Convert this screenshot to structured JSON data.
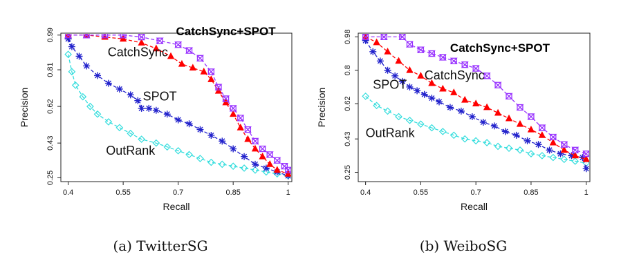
{
  "captions": [
    "(a) TwitterSG",
    "(b) WeiboSG"
  ],
  "chart_data": [
    {
      "type": "line",
      "xlabel": "Recall",
      "ylabel": "Precision",
      "xlim": [
        0.38,
        1.01
      ],
      "ylim": [
        0.23,
        1.0
      ],
      "xticks": [
        0.4,
        0.55,
        0.7,
        0.85,
        1
      ],
      "xtick_labels": [
        "0.4",
        "0.55",
        "0.7",
        "0.85",
        "1"
      ],
      "yticks": [
        0.25,
        0.43,
        0.62,
        0.81,
        0.99
      ],
      "ytick_labels": [
        "0.25",
        "0.43",
        "0.62",
        "0.81",
        "0.99"
      ],
      "annotations": [
        {
          "text": "CatchSync+SPOT",
          "x": 0.83,
          "y": 0.99,
          "bold": true
        },
        {
          "text": "CatchSync",
          "x": 0.59,
          "y": 0.88,
          "bold": false
        },
        {
          "text": "SPOT",
          "x": 0.65,
          "y": 0.65,
          "bold": false
        },
        {
          "text": "OutRank",
          "x": 0.57,
          "y": 0.37,
          "bold": false
        }
      ],
      "series": [
        {
          "color": "#9933ff",
          "marker": "hourglass",
          "x": [
            0.4,
            0.45,
            0.5,
            0.55,
            0.6,
            0.65,
            0.7,
            0.73,
            0.76,
            0.79,
            0.81,
            0.83,
            0.85,
            0.87,
            0.89,
            0.91,
            0.93,
            0.95,
            0.97,
            0.99,
            1.0
          ],
          "y": [
            0.99,
            0.99,
            0.99,
            0.99,
            0.98,
            0.96,
            0.94,
            0.91,
            0.87,
            0.8,
            0.72,
            0.66,
            0.61,
            0.56,
            0.5,
            0.44,
            0.4,
            0.37,
            0.34,
            0.31,
            0.29
          ]
        },
        {
          "color": "#ff0000",
          "marker": "triangle",
          "x": [
            0.4,
            0.45,
            0.5,
            0.55,
            0.6,
            0.64,
            0.68,
            0.71,
            0.74,
            0.77,
            0.79,
            0.81,
            0.83,
            0.85,
            0.87,
            0.89,
            0.91,
            0.93,
            0.95,
            0.97,
            1.0
          ],
          "y": [
            0.99,
            0.99,
            0.98,
            0.97,
            0.95,
            0.92,
            0.88,
            0.84,
            0.82,
            0.8,
            0.76,
            0.7,
            0.64,
            0.58,
            0.51,
            0.45,
            0.4,
            0.36,
            0.32,
            0.29,
            0.27
          ]
        },
        {
          "color": "#2222cc",
          "marker": "asterisk",
          "x": [
            0.4,
            0.41,
            0.43,
            0.45,
            0.48,
            0.51,
            0.54,
            0.57,
            0.59,
            0.6,
            0.62,
            0.64,
            0.67,
            0.7,
            0.73,
            0.76,
            0.79,
            0.82,
            0.85,
            0.88,
            0.91,
            0.94,
            0.97,
            1.0
          ],
          "y": [
            0.97,
            0.93,
            0.88,
            0.83,
            0.78,
            0.74,
            0.71,
            0.68,
            0.65,
            0.61,
            0.61,
            0.6,
            0.58,
            0.55,
            0.53,
            0.5,
            0.47,
            0.44,
            0.4,
            0.36,
            0.32,
            0.3,
            0.28,
            0.26
          ]
        },
        {
          "color": "#33dddd",
          "marker": "diamond",
          "x": [
            0.4,
            0.41,
            0.42,
            0.44,
            0.46,
            0.48,
            0.51,
            0.54,
            0.57,
            0.6,
            0.64,
            0.67,
            0.7,
            0.73,
            0.76,
            0.79,
            0.82,
            0.85,
            0.88,
            0.91,
            0.94,
            0.97,
            1.0
          ],
          "y": [
            0.89,
            0.8,
            0.73,
            0.67,
            0.62,
            0.58,
            0.54,
            0.51,
            0.48,
            0.45,
            0.43,
            0.41,
            0.39,
            0.37,
            0.35,
            0.33,
            0.32,
            0.31,
            0.3,
            0.29,
            0.28,
            0.27,
            0.26
          ]
        }
      ]
    },
    {
      "type": "line",
      "xlabel": "Recall",
      "ylabel": "Precision",
      "xlim": [
        0.38,
        1.01
      ],
      "ylim": [
        0.2,
        1.0
      ],
      "xticks": [
        0.4,
        0.55,
        0.7,
        0.85,
        1
      ],
      "xtick_labels": [
        "0.4",
        "0.55",
        "0.7",
        "0.85",
        "1"
      ],
      "yticks": [
        0.25,
        0.43,
        0.62,
        0.8,
        0.98
      ],
      "ytick_labels": [
        "0.25",
        "0.43",
        "0.62",
        "0.8",
        "0.98"
      ],
      "annotations": [
        {
          "text": "CatchSync+SPOT",
          "x": 0.63,
          "y": 0.9,
          "bold": true
        },
        {
          "text": "CatchSync",
          "x": 0.56,
          "y": 0.75,
          "bold": false
        },
        {
          "text": "SPOT",
          "x": 0.42,
          "y": 0.7,
          "bold": false
        },
        {
          "text": "OutRank",
          "x": 0.4,
          "y": 0.44,
          "bold": false
        }
      ],
      "series": [
        {
          "color": "#9933ff",
          "marker": "hourglass",
          "x": [
            0.4,
            0.45,
            0.5,
            0.52,
            0.55,
            0.58,
            0.61,
            0.64,
            0.67,
            0.7,
            0.73,
            0.76,
            0.79,
            0.82,
            0.85,
            0.88,
            0.91,
            0.94,
            0.97,
            1.0
          ],
          "y": [
            0.98,
            0.98,
            0.98,
            0.94,
            0.91,
            0.89,
            0.87,
            0.85,
            0.83,
            0.81,
            0.77,
            0.72,
            0.66,
            0.6,
            0.55,
            0.49,
            0.44,
            0.4,
            0.37,
            0.35
          ]
        },
        {
          "color": "#ff0000",
          "marker": "triangle",
          "x": [
            0.4,
            0.43,
            0.46,
            0.49,
            0.52,
            0.55,
            0.58,
            0.61,
            0.64,
            0.67,
            0.7,
            0.73,
            0.76,
            0.79,
            0.82,
            0.85,
            0.88,
            0.91,
            0.94,
            0.97,
            1.0
          ],
          "y": [
            0.98,
            0.95,
            0.9,
            0.85,
            0.8,
            0.77,
            0.73,
            0.7,
            0.68,
            0.64,
            0.62,
            0.6,
            0.57,
            0.54,
            0.51,
            0.48,
            0.45,
            0.41,
            0.37,
            0.34,
            0.32
          ]
        },
        {
          "color": "#2222cc",
          "marker": "asterisk",
          "x": [
            0.4,
            0.42,
            0.44,
            0.46,
            0.48,
            0.5,
            0.52,
            0.54,
            0.56,
            0.58,
            0.6,
            0.63,
            0.66,
            0.69,
            0.72,
            0.75,
            0.78,
            0.81,
            0.84,
            0.87,
            0.9,
            0.93,
            0.96,
            0.99,
            1.0
          ],
          "y": [
            0.96,
            0.9,
            0.85,
            0.8,
            0.77,
            0.74,
            0.71,
            0.69,
            0.67,
            0.65,
            0.63,
            0.6,
            0.58,
            0.55,
            0.52,
            0.5,
            0.47,
            0.45,
            0.42,
            0.4,
            0.37,
            0.35,
            0.34,
            0.33,
            0.27
          ]
        },
        {
          "color": "#33dddd",
          "marker": "diamond",
          "x": [
            0.4,
            0.43,
            0.46,
            0.49,
            0.52,
            0.55,
            0.58,
            0.61,
            0.64,
            0.67,
            0.7,
            0.73,
            0.76,
            0.79,
            0.82,
            0.85,
            0.88,
            0.91,
            0.94,
            0.97,
            1.0
          ],
          "y": [
            0.66,
            0.61,
            0.58,
            0.55,
            0.53,
            0.51,
            0.49,
            0.47,
            0.45,
            0.43,
            0.42,
            0.41,
            0.39,
            0.38,
            0.37,
            0.35,
            0.34,
            0.33,
            0.32,
            0.31,
            0.3
          ]
        }
      ]
    }
  ]
}
